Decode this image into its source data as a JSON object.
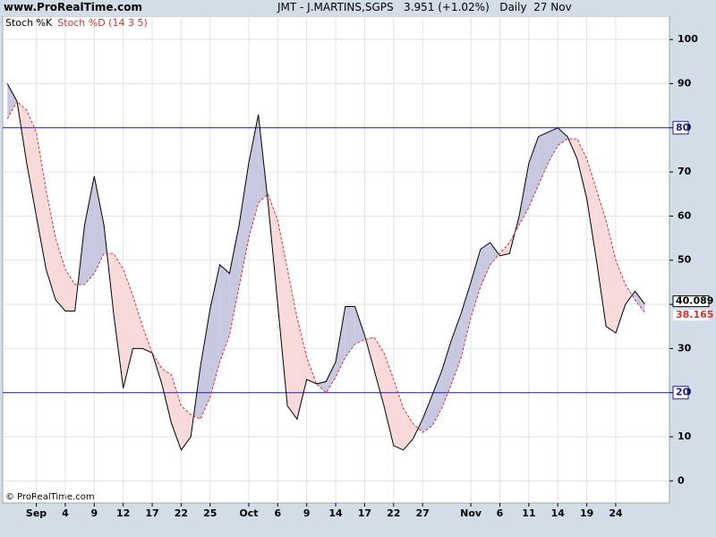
{
  "header": {
    "site": "www.ProRealTime.com",
    "title": "JMT - J.MARTINS,SGPS   3.951 (+1.02%)   Daily  27 Nov"
  },
  "chart_data": {
    "type": "line",
    "watermark": "© ProRealTime.com",
    "categories": [
      null,
      null,
      null,
      "Sep",
      null,
      null,
      "4",
      null,
      null,
      "9",
      null,
      null,
      "12",
      null,
      null,
      "17",
      null,
      null,
      "22",
      null,
      null,
      "25",
      null,
      null,
      null,
      "Oct",
      null,
      null,
      "6",
      null,
      null,
      "9",
      null,
      null,
      "14",
      null,
      null,
      "17",
      null,
      null,
      "22",
      null,
      null,
      "27",
      null,
      null,
      null,
      null,
      "Nov",
      null,
      null,
      "6",
      null,
      null,
      "11",
      null,
      null,
      "14",
      null,
      null,
      "19",
      null,
      null,
      "24",
      null,
      null,
      null
    ],
    "series": [
      {
        "name": "Stoch %K",
        "color": "#000000",
        "dash": false,
        "values": [
          90,
          86,
          72,
          60,
          48,
          41,
          38.5,
          38.5,
          58,
          69,
          58,
          38,
          21,
          30,
          30,
          29,
          22,
          13,
          7,
          10,
          26,
          39,
          49,
          47,
          58,
          72,
          83,
          63,
          40,
          17,
          14,
          23,
          22,
          22.5,
          27,
          39.5,
          39.5,
          33,
          25,
          17,
          8,
          7,
          9.5,
          14,
          19.5,
          25,
          32,
          38,
          45,
          52.5,
          54,
          51,
          51.5,
          60,
          72,
          78,
          79,
          80,
          78,
          73,
          64,
          50,
          35,
          33.5,
          40,
          43,
          40.089
        ]
      },
      {
        "name": "Stoch %D (14 3 5)",
        "color": "#e03030",
        "dash": true,
        "values": [
          82,
          86,
          84,
          79,
          66,
          55,
          48,
          44.5,
          44.5,
          47,
          51.5,
          51.5,
          48,
          42,
          35,
          29,
          25.5,
          24,
          17,
          15,
          14,
          19,
          27,
          33,
          44,
          55,
          63,
          65,
          59,
          48,
          37,
          28,
          22,
          20,
          23.5,
          28,
          31,
          32,
          32.5,
          29,
          23,
          16.5,
          13,
          11,
          12.5,
          16.5,
          22,
          28,
          37,
          44,
          49,
          51.5,
          54,
          58,
          62,
          67,
          72,
          76,
          77.5,
          77.5,
          73,
          66,
          59,
          50,
          44.5,
          41,
          38.165
        ]
      }
    ],
    "fill_above": "#c8c8e0",
    "fill_below": "#f9dada",
    "ylim": [
      -5,
      105.3
    ],
    "yticks": [
      0,
      10,
      20,
      30,
      40,
      50,
      60,
      70,
      80,
      90,
      100
    ],
    "hlines": [
      20,
      80
    ],
    "hline_color": "#2020a0",
    "grid": true
  }
}
